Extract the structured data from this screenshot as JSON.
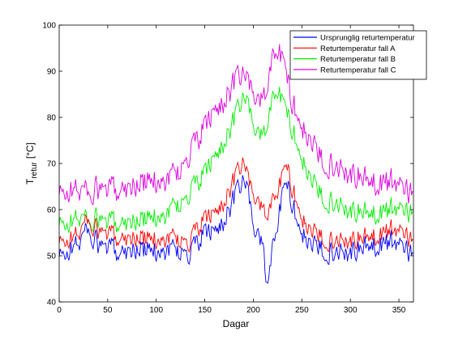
{
  "chart_data": {
    "type": "line",
    "title": "",
    "xlabel": "Dagar",
    "ylabel": "T",
    "ylabel_subscript": "retur",
    "ylabel_unit": "[°C]",
    "xlim": [
      0,
      365
    ],
    "ylim": [
      40,
      100
    ],
    "xticks": [
      0,
      50,
      100,
      150,
      200,
      250,
      300,
      350
    ],
    "yticks": [
      40,
      50,
      60,
      70,
      80,
      90,
      100
    ],
    "grid": false,
    "legend_location": "top-right",
    "series": [
      {
        "name": "Ursprunglig returtemperatur",
        "color": "#0000ff",
        "keypoints": [
          [
            0,
            49.5
          ],
          [
            10,
            51
          ],
          [
            20,
            53
          ],
          [
            30,
            56
          ],
          [
            40,
            52
          ],
          [
            60,
            51
          ],
          [
            80,
            51.5
          ],
          [
            100,
            51
          ],
          [
            120,
            51.5
          ],
          [
            135,
            50
          ],
          [
            140,
            52
          ],
          [
            150,
            55
          ],
          [
            160,
            55
          ],
          [
            170,
            58
          ],
          [
            180,
            62
          ],
          [
            190,
            66
          ],
          [
            195,
            64
          ],
          [
            200,
            56
          ],
          [
            205,
            55
          ],
          [
            210,
            52
          ],
          [
            213,
            45
          ],
          [
            216,
            44
          ],
          [
            220,
            52
          ],
          [
            225,
            58
          ],
          [
            230,
            63
          ],
          [
            235,
            65
          ],
          [
            240,
            62
          ],
          [
            245,
            58
          ],
          [
            250,
            55
          ],
          [
            260,
            52
          ],
          [
            270,
            51.5
          ],
          [
            280,
            51
          ],
          [
            300,
            51
          ],
          [
            320,
            52
          ],
          [
            340,
            53
          ],
          [
            355,
            53
          ],
          [
            360,
            51
          ],
          [
            365,
            49
          ]
        ]
      },
      {
        "name": "Returtemperatur fall A",
        "color": "#ff0000",
        "keypoints": [
          [
            0,
            52.5
          ],
          [
            10,
            53.5
          ],
          [
            20,
            55
          ],
          [
            30,
            58
          ],
          [
            40,
            55
          ],
          [
            60,
            54
          ],
          [
            80,
            54
          ],
          [
            100,
            53.5
          ],
          [
            120,
            54
          ],
          [
            135,
            52.5
          ],
          [
            140,
            55
          ],
          [
            150,
            58
          ],
          [
            160,
            59
          ],
          [
            170,
            62
          ],
          [
            180,
            66
          ],
          [
            190,
            70
          ],
          [
            195,
            67
          ],
          [
            200,
            63
          ],
          [
            205,
            62
          ],
          [
            210,
            60
          ],
          [
            215,
            58
          ],
          [
            220,
            62
          ],
          [
            225,
            65
          ],
          [
            230,
            67
          ],
          [
            235,
            69
          ],
          [
            240,
            65
          ],
          [
            245,
            62
          ],
          [
            250,
            58
          ],
          [
            260,
            55
          ],
          [
            270,
            54
          ],
          [
            280,
            53.5
          ],
          [
            300,
            53.5
          ],
          [
            320,
            54
          ],
          [
            340,
            55.5
          ],
          [
            355,
            56
          ],
          [
            360,
            54
          ],
          [
            365,
            52
          ]
        ]
      },
      {
        "name": "Returtemperatur fall B",
        "color": "#00ee00",
        "keypoints": [
          [
            0,
            56.5
          ],
          [
            10,
            57
          ],
          [
            20,
            58.5
          ],
          [
            30,
            58
          ],
          [
            50,
            57
          ],
          [
            70,
            57.5
          ],
          [
            90,
            58
          ],
          [
            110,
            59
          ],
          [
            120,
            61
          ],
          [
            130,
            62
          ],
          [
            140,
            65
          ],
          [
            150,
            68
          ],
          [
            160,
            71
          ],
          [
            170,
            75
          ],
          [
            180,
            79
          ],
          [
            190,
            84
          ],
          [
            195,
            83
          ],
          [
            200,
            78
          ],
          [
            205,
            77
          ],
          [
            210,
            76
          ],
          [
            215,
            78
          ],
          [
            220,
            84
          ],
          [
            225,
            87
          ],
          [
            230,
            83
          ],
          [
            240,
            78
          ],
          [
            250,
            71
          ],
          [
            260,
            66
          ],
          [
            270,
            63
          ],
          [
            280,
            62
          ],
          [
            300,
            60
          ],
          [
            320,
            59
          ],
          [
            340,
            60
          ],
          [
            355,
            61
          ],
          [
            365,
            58
          ]
        ]
      },
      {
        "name": "Returtemperatur fall C",
        "color": "#dd00dd",
        "keypoints": [
          [
            0,
            63
          ],
          [
            10,
            64
          ],
          [
            20,
            64.5
          ],
          [
            30,
            64
          ],
          [
            50,
            64
          ],
          [
            70,
            65
          ],
          [
            90,
            66
          ],
          [
            110,
            66.5
          ],
          [
            120,
            68
          ],
          [
            130,
            70
          ],
          [
            140,
            74
          ],
          [
            150,
            78
          ],
          [
            160,
            81
          ],
          [
            170,
            84
          ],
          [
            180,
            87
          ],
          [
            190,
            89
          ],
          [
            195,
            88
          ],
          [
            200,
            85
          ],
          [
            205,
            84
          ],
          [
            210,
            84
          ],
          [
            215,
            86
          ],
          [
            220,
            93
          ],
          [
            225,
            96
          ],
          [
            230,
            92
          ],
          [
            240,
            84
          ],
          [
            250,
            78
          ],
          [
            260,
            74
          ],
          [
            270,
            71
          ],
          [
            280,
            70
          ],
          [
            300,
            68
          ],
          [
            320,
            66
          ],
          [
            340,
            66
          ],
          [
            355,
            66
          ],
          [
            365,
            62
          ]
        ]
      }
    ]
  }
}
